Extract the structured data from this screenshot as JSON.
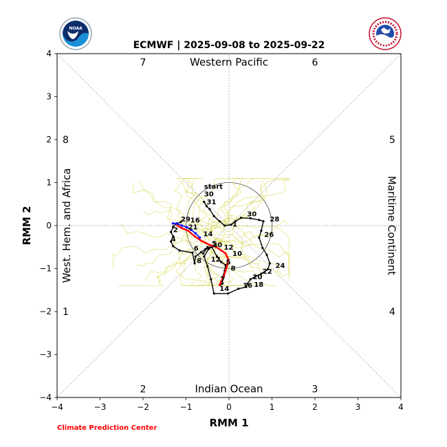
{
  "chart_data": {
    "type": "scatter",
    "title": "ECMWF | 2025-09-08 to 2025-09-22",
    "xlabel": "RMM 1",
    "ylabel": "RMM 2",
    "xlim": [
      -4,
      4
    ],
    "ylim": [
      -4,
      4
    ],
    "xticks": [
      "−4",
      "−3",
      "−2",
      "−1",
      "0",
      "1",
      "2",
      "3",
      "4"
    ],
    "yticks": [
      "−4",
      "−3",
      "−2",
      "−1",
      "0",
      "1",
      "2",
      "3",
      "4"
    ],
    "grid": "dashed reference lines",
    "unit_circle_radius": 1,
    "phase_numbers": [
      {
        "label": "7",
        "x": -2,
        "y": 3.8
      },
      {
        "label": "6",
        "x": 2,
        "y": 3.8
      },
      {
        "label": "8",
        "x": -3.8,
        "y": 2
      },
      {
        "label": "5",
        "x": 3.8,
        "y": 2
      },
      {
        "label": "1",
        "x": -3.8,
        "y": -2
      },
      {
        "label": "4",
        "x": 3.8,
        "y": -2
      },
      {
        "label": "2",
        "x": -2,
        "y": -3.8
      },
      {
        "label": "3",
        "x": 2,
        "y": -3.8
      }
    ],
    "regions": {
      "top": "Western Pacific",
      "bottom": "Indian Ocean",
      "left": "West. Hem. and Africa",
      "right": "Maritime Continent"
    },
    "observed_track": {
      "color": "#000000",
      "points": [
        [
          -0.58,
          0.55
        ],
        [
          -0.52,
          0.45
        ],
        [
          -0.45,
          0.38
        ],
        [
          -0.35,
          0.22
        ],
        [
          -0.22,
          0.1
        ],
        [
          -0.1,
          0.0
        ],
        [
          0.05,
          0.02
        ],
        [
          0.15,
          0.1
        ],
        [
          0.28,
          0.18
        ],
        [
          0.5,
          0.17
        ],
        [
          0.7,
          0.13
        ],
        [
          0.8,
          0.1
        ],
        [
          0.75,
          -0.12
        ],
        [
          0.7,
          -0.28
        ],
        [
          0.78,
          -0.52
        ],
        [
          0.88,
          -0.68
        ],
        [
          0.95,
          -0.88
        ],
        [
          0.9,
          -1.02
        ],
        [
          0.75,
          -1.12
        ],
        [
          0.62,
          -1.18
        ],
        [
          0.5,
          -1.25
        ],
        [
          0.43,
          -1.35
        ],
        [
          0.4,
          -1.43
        ],
        [
          0.22,
          -1.47
        ],
        [
          -0.02,
          -1.58
        ],
        [
          -0.35,
          -1.58
        ],
        [
          -0.42,
          -1.25
        ],
        [
          -0.5,
          -0.95
        ],
        [
          -0.58,
          -0.72
        ],
        [
          -0.48,
          -0.55
        ],
        [
          -0.38,
          -0.48
        ],
        [
          -0.55,
          -0.55
        ],
        [
          -0.65,
          -0.62
        ],
        [
          -0.78,
          -0.72
        ],
        [
          -0.8,
          -0.88
        ],
        [
          -0.85,
          -0.63
        ],
        [
          -1.15,
          -0.58
        ],
        [
          -1.3,
          -0.48
        ],
        [
          -1.35,
          -0.37
        ],
        [
          -1.3,
          -0.25
        ],
        [
          -1.35,
          -0.15
        ],
        [
          -1.3,
          -0.03
        ],
        [
          -1.22,
          0.05
        ],
        [
          -1.12,
          0.08
        ]
      ]
    },
    "forecast_black": {
      "color": "#000000",
      "points": [
        [
          -0.6,
          -0.65
        ],
        [
          -0.5,
          -0.5
        ],
        [
          -0.4,
          -0.5
        ],
        [
          -0.28,
          -0.72
        ],
        [
          -0.18,
          -0.85
        ],
        [
          -0.08,
          -0.92
        ],
        [
          -0.1,
          -1.05
        ],
        [
          -0.15,
          -1.2
        ],
        [
          -0.15,
          -1.35
        ],
        [
          -0.2,
          -1.38
        ]
      ]
    },
    "ensemble_mean": {
      "color": "#ff0000",
      "points": [
        [
          -1.2,
          0.0
        ],
        [
          -1.1,
          -0.06
        ],
        [
          -0.95,
          -0.12
        ],
        [
          -0.8,
          -0.25
        ],
        [
          -0.65,
          -0.35
        ],
        [
          -0.45,
          -0.45
        ],
        [
          -0.3,
          -0.5
        ],
        [
          -0.18,
          -0.58
        ],
        [
          -0.08,
          -0.65
        ],
        [
          -0.02,
          -0.78
        ],
        [
          -0.05,
          -0.95
        ],
        [
          -0.08,
          -1.05
        ],
        [
          -0.12,
          -1.18
        ],
        [
          -0.18,
          -1.3
        ],
        [
          -0.22,
          -1.38
        ]
      ]
    },
    "blue_track": {
      "color": "#0000ff",
      "points": [
        [
          -1.3,
          0.05
        ],
        [
          -1.2,
          0.04
        ],
        [
          -1.1,
          0.0
        ],
        [
          -0.98,
          -0.04
        ],
        [
          -0.88,
          -0.1
        ],
        [
          -0.78,
          -0.18
        ],
        [
          -0.68,
          -0.28
        ]
      ]
    },
    "ensemble_color": "#d4d43a",
    "ensemble_center": [
      -0.6,
      -0.35
    ],
    "day_labels": [
      {
        "label": "start",
        "x": -0.58,
        "y": 0.86
      },
      {
        "label": "30",
        "x": -0.58,
        "y": 0.68
      },
      {
        "label": "31",
        "x": -0.52,
        "y": 0.5
      },
      {
        "label": "1",
        "x": 0.08,
        "y": -0.02
      },
      {
        "label": "30",
        "x": 0.42,
        "y": 0.22
      },
      {
        "label": "28",
        "x": 0.95,
        "y": 0.1
      },
      {
        "label": "26",
        "x": 0.82,
        "y": -0.26
      },
      {
        "label": "24",
        "x": 1.08,
        "y": -0.98
      },
      {
        "label": "22",
        "x": 0.78,
        "y": -1.12
      },
      {
        "label": "20",
        "x": 0.55,
        "y": -1.25
      },
      {
        "label": "18",
        "x": 0.58,
        "y": -1.42
      },
      {
        "label": "16",
        "x": 0.32,
        "y": -1.45
      },
      {
        "label": "14",
        "x": -0.22,
        "y": -1.52
      },
      {
        "label": "29",
        "x": -1.12,
        "y": 0.1
      },
      {
        "label": "16",
        "x": -0.9,
        "y": 0.07
      },
      {
        "label": "2",
        "x": -1.3,
        "y": -0.15
      },
      {
        "label": "21",
        "x": -0.95,
        "y": -0.09
      },
      {
        "label": "4",
        "x": -1.35,
        "y": -0.37
      },
      {
        "label": "14",
        "x": -0.6,
        "y": -0.25
      },
      {
        "label": "30",
        "x": -0.38,
        "y": -0.5
      },
      {
        "label": "5",
        "x": -0.4,
        "y": -0.47
      },
      {
        "label": "12",
        "x": -0.12,
        "y": -0.56
      },
      {
        "label": "10",
        "x": 0.08,
        "y": -0.7
      },
      {
        "label": "6",
        "x": -0.82,
        "y": -0.58
      },
      {
        "label": "8",
        "x": -0.75,
        "y": -0.87
      },
      {
        "label": "12",
        "x": -0.42,
        "y": -0.84
      },
      {
        "label": "5",
        "x": -0.07,
        "y": -0.9
      },
      {
        "label": "8",
        "x": 0.04,
        "y": -1.05
      },
      {
        "label": "7",
        "x": -0.2,
        "y": -1.3
      }
    ]
  },
  "logos": {
    "left": "NOAA",
    "right": "NATIONAL WEATHER SERVICE"
  },
  "credit": "Climate Prediction Center"
}
